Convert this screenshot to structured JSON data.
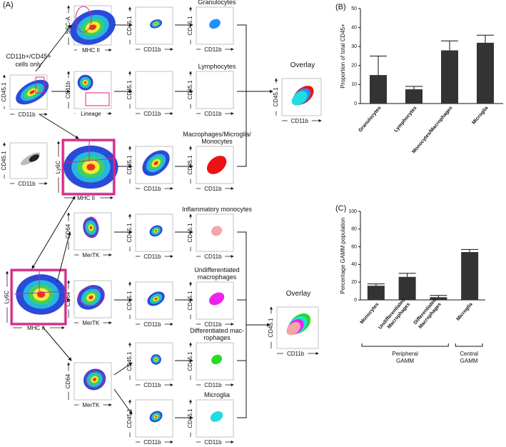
{
  "panel_a": {
    "label": "(A)",
    "gate_note": [
      "CD11b+/CD45+",
      "cells only"
    ],
    "overlay_top": "Overlay",
    "overlay_bottom": "Overlay",
    "plots": [
      {
        "y": "CD45.1",
        "x": "CD11b"
      },
      {
        "y": "SSC-A",
        "x": "MHC II"
      },
      {
        "y": "CD45.1",
        "x": "CD11b"
      },
      {
        "y": "CD45.1",
        "x": "CD11b",
        "title": [
          "Granulocytes"
        ]
      },
      {
        "y": "CD11b",
        "x": "Lineage"
      },
      {
        "y": "CD45.1",
        "x": "CD11b"
      },
      {
        "y": "CD45.1",
        "x": "CD11b",
        "title": [
          "Lymphocytes"
        ]
      },
      {
        "y": "CD45.1",
        "x": "CD11b"
      },
      {
        "y": "Ly6C",
        "x": "MHC II"
      },
      {
        "y": "CD45.1",
        "x": "CD11b"
      },
      {
        "y": "CD45.1",
        "x": "CD11b",
        "title": [
          "Macrophages/Microglia/",
          "Monocytes"
        ]
      },
      {
        "y": "Ly6C",
        "x": "MHC II"
      },
      {
        "y": "CD64",
        "x": "MerTK"
      },
      {
        "y": "CD45.1",
        "x": "CD11b"
      },
      {
        "y": "CD45.1",
        "x": "CD11b",
        "title": [
          "Inflammatory monocytes"
        ]
      },
      {
        "y": "CD64",
        "x": "MerTK"
      },
      {
        "y": "CD45.1",
        "x": "CD11b"
      },
      {
        "y": "CD45.1",
        "x": "CD11b",
        "title": [
          "Undifferentiated",
          "macrophages"
        ]
      },
      {
        "y": "CD64",
        "x": "MerTK"
      },
      {
        "y": "CD45.1",
        "x": "CD11b"
      },
      {
        "y": "CD45.1",
        "x": "CD11b",
        "title": [
          "Differentiated mac-",
          "rophages"
        ]
      },
      {
        "y": "CD45.1",
        "x": "CD11b"
      },
      {
        "y": "CD45.1",
        "x": "CD11b",
        "title": [
          "Microglia"
        ]
      },
      {
        "y": "CD45.1",
        "x": "CD11b"
      },
      {
        "y": "CD45.1",
        "x": "CD11b"
      }
    ]
  },
  "chart_data": [
    {
      "type": "bar",
      "panel": "(B)",
      "y_label": "Proportion of total CD45+",
      "categories": [
        "Granulocytes",
        "Lymphocytes",
        "Monocytes/Macrophages",
        "Microglia"
      ],
      "values": [
        15,
        7.5,
        28,
        32
      ],
      "errors": [
        10,
        1.5,
        5,
        4
      ],
      "color": "#333333",
      "ylim": [
        0,
        50
      ],
      "yticks": [
        0,
        10,
        20,
        30,
        40,
        50
      ]
    },
    {
      "type": "bar",
      "panel": "(C)",
      "y_label": "Percentage GAMM population",
      "categories": [
        "Monocytes",
        "Undifferentiated Macrophages",
        "Differentiated Macrophages",
        "Microglia"
      ],
      "values": [
        16,
        26,
        3,
        54
      ],
      "errors": [
        2,
        4,
        2,
        3
      ],
      "color": "#333333",
      "ylim": [
        0,
        100
      ],
      "yticks": [
        0,
        20,
        40,
        60,
        80,
        100
      ],
      "groups": [
        {
          "label": [
            "Peripheral",
            "GAMM"
          ]
        },
        {
          "label": [
            "Central",
            "GAMM"
          ]
        }
      ]
    }
  ]
}
